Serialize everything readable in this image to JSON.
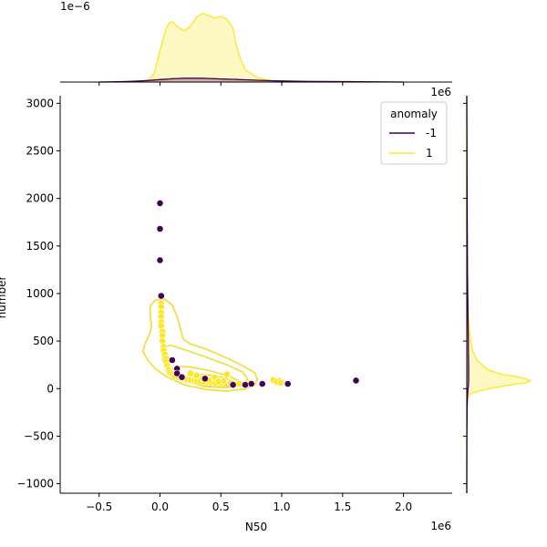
{
  "chart_data": {
    "type": "scatter",
    "title": "",
    "xlabel": "N50",
    "ylabel": "number",
    "x_offset_label": "1e6",
    "y_offset_label": "1e6",
    "top_marginal_offset_label": "1e−6",
    "xlim": [
      -0.82,
      2.4
    ],
    "ylim": [
      -1100,
      3080
    ],
    "xticks": [
      -0.5,
      0.0,
      0.5,
      1.0,
      1.5,
      2.0
    ],
    "xtick_labels": [
      "−0.5",
      "0.0",
      "0.5",
      "1.0",
      "1.5",
      "2.0"
    ],
    "yticks": [
      -1000,
      -500,
      0,
      500,
      1000,
      1500,
      2000,
      2500,
      3000
    ],
    "ytick_labels": [
      "−1000",
      "−500",
      "0",
      "500",
      "1000",
      "1500",
      "2000",
      "2500",
      "3000"
    ],
    "legend": {
      "title": "anomaly",
      "placement": "top-right",
      "entries": [
        {
          "label": "-1",
          "color": "#440154"
        },
        {
          "label": "1",
          "color": "#fde725"
        }
      ]
    },
    "colors": {
      "anomaly_neg": "#440154",
      "anomaly_pos": "#fde725",
      "kde_line": "#f2dc33"
    },
    "series": [
      {
        "name": "1",
        "color": "#fde725",
        "points": [
          [
            0.01,
            900
          ],
          [
            0.01,
            860
          ],
          [
            0.01,
            800
          ],
          [
            0.01,
            760
          ],
          [
            0.01,
            700
          ],
          [
            0.01,
            660
          ],
          [
            0.02,
            600
          ],
          [
            0.02,
            560
          ],
          [
            0.02,
            500
          ],
          [
            0.03,
            440
          ],
          [
            0.03,
            400
          ],
          [
            0.04,
            360
          ],
          [
            0.05,
            320
          ],
          [
            0.05,
            280
          ],
          [
            0.06,
            240
          ],
          [
            0.07,
            200
          ],
          [
            0.08,
            170
          ],
          [
            0.1,
            150
          ],
          [
            0.12,
            130
          ],
          [
            0.15,
            120
          ],
          [
            0.18,
            110
          ],
          [
            0.2,
            100
          ],
          [
            0.22,
            95
          ],
          [
            0.25,
            90
          ],
          [
            0.28,
            85
          ],
          [
            0.3,
            80
          ],
          [
            0.33,
            75
          ],
          [
            0.36,
            70
          ],
          [
            0.4,
            68
          ],
          [
            0.43,
            65
          ],
          [
            0.46,
            60
          ],
          [
            0.5,
            58
          ],
          [
            0.55,
            150
          ],
          [
            0.52,
            80
          ],
          [
            0.6,
            55
          ],
          [
            0.65,
            50
          ],
          [
            0.7,
            45
          ],
          [
            0.74,
            60
          ],
          [
            0.93,
            90
          ],
          [
            0.96,
            70
          ],
          [
            0.99,
            60
          ],
          [
            0.45,
            120
          ],
          [
            0.35,
            110
          ],
          [
            0.3,
            140
          ],
          [
            0.25,
            160
          ],
          [
            0.4,
            90
          ],
          [
            0.48,
            75
          ],
          [
            0.58,
            65
          ]
        ]
      },
      {
        "name": "-1",
        "color": "#440154",
        "points": [
          [
            0.0,
            1950
          ],
          [
            0.0,
            1680
          ],
          [
            0.0,
            1350
          ],
          [
            0.01,
            975
          ],
          [
            0.1,
            300
          ],
          [
            0.14,
            210
          ],
          [
            0.14,
            160
          ],
          [
            0.18,
            120
          ],
          [
            0.37,
            105
          ],
          [
            0.6,
            40
          ],
          [
            0.7,
            40
          ],
          [
            0.75,
            50
          ],
          [
            0.84,
            50
          ],
          [
            1.05,
            50
          ],
          [
            1.61,
            85
          ]
        ]
      }
    ],
    "kde_contours_1": [
      [
        [
          -0.1,
          300
        ],
        [
          -0.14,
          390
        ],
        [
          -0.12,
          480
        ],
        [
          -0.09,
          560
        ],
        [
          -0.07,
          650
        ],
        [
          -0.08,
          760
        ],
        [
          -0.08,
          870
        ],
        [
          -0.04,
          930
        ],
        [
          0.04,
          940
        ],
        [
          0.1,
          880
        ],
        [
          0.14,
          760
        ],
        [
          0.17,
          620
        ],
        [
          0.19,
          520
        ],
        [
          0.25,
          470
        ],
        [
          0.39,
          410
        ],
        [
          0.55,
          320
        ],
        [
          0.68,
          240
        ],
        [
          0.78,
          165
        ],
        [
          0.8,
          100
        ],
        [
          0.78,
          40
        ],
        [
          0.7,
          -5
        ],
        [
          0.55,
          -25
        ],
        [
          0.38,
          -10
        ],
        [
          0.2,
          40
        ],
        [
          0.06,
          120
        ],
        [
          -0.04,
          210
        ],
        [
          -0.1,
          300
        ]
      ],
      [
        [
          0.02,
          310
        ],
        [
          0.03,
          400
        ],
        [
          0.04,
          440
        ],
        [
          0.09,
          455
        ],
        [
          0.2,
          410
        ],
        [
          0.38,
          330
        ],
        [
          0.55,
          250
        ],
        [
          0.68,
          175
        ],
        [
          0.72,
          100
        ],
        [
          0.68,
          40
        ],
        [
          0.55,
          10
        ],
        [
          0.38,
          20
        ],
        [
          0.22,
          70
        ],
        [
          0.1,
          160
        ],
        [
          0.04,
          240
        ],
        [
          0.02,
          310
        ]
      ],
      [
        [
          0.08,
          180
        ],
        [
          0.12,
          230
        ],
        [
          0.24,
          230
        ],
        [
          0.4,
          190
        ],
        [
          0.57,
          130
        ],
        [
          0.66,
          75
        ],
        [
          0.6,
          30
        ],
        [
          0.44,
          25
        ],
        [
          0.28,
          55
        ],
        [
          0.14,
          110
        ],
        [
          0.08,
          180
        ]
      ],
      [
        [
          0.22,
          110
        ],
        [
          0.3,
          150
        ],
        [
          0.44,
          140
        ],
        [
          0.55,
          105
        ],
        [
          0.6,
          70
        ],
        [
          0.52,
          40
        ],
        [
          0.38,
          45
        ],
        [
          0.26,
          75
        ],
        [
          0.22,
          110
        ]
      ],
      [
        [
          0.3,
          95
        ],
        [
          0.4,
          105
        ],
        [
          0.5,
          85
        ],
        [
          0.52,
          60
        ],
        [
          0.42,
          55
        ],
        [
          0.32,
          70
        ],
        [
          0.3,
          95
        ]
      ],
      [
        [
          0.92,
          95
        ],
        [
          0.98,
          105
        ],
        [
          1.02,
          80
        ],
        [
          0.98,
          55
        ],
        [
          0.93,
          65
        ],
        [
          0.92,
          95
        ]
      ]
    ],
    "top_marginal": {
      "x": [
        -0.5,
        -0.4,
        -0.3,
        -0.2,
        -0.1,
        -0.05,
        0.0,
        0.05,
        0.08,
        0.1,
        0.15,
        0.2,
        0.25,
        0.3,
        0.35,
        0.4,
        0.45,
        0.5,
        0.55,
        0.6,
        0.62,
        0.65,
        0.7,
        0.8,
        0.9,
        1.0,
        1.2,
        1.5,
        2.0
      ],
      "density_1": [
        0.0,
        0.0,
        0.01,
        0.02,
        0.07,
        0.35,
        1.4,
        2.4,
        2.65,
        2.7,
        2.45,
        2.28,
        2.5,
        2.9,
        3.05,
        2.97,
        2.85,
        2.92,
        2.8,
        2.4,
        1.8,
        1.2,
        0.55,
        0.2,
        0.08,
        0.03,
        0.01,
        0.0,
        0.0
      ],
      "density_neg1": [
        0.0,
        0.01,
        0.02,
        0.04,
        0.07,
        0.09,
        0.11,
        0.13,
        0.14,
        0.15,
        0.16,
        0.17,
        0.17,
        0.17,
        0.17,
        0.16,
        0.15,
        0.14,
        0.13,
        0.12,
        0.12,
        0.11,
        0.1,
        0.08,
        0.06,
        0.05,
        0.03,
        0.02,
        0.0
      ]
    },
    "right_marginal": {
      "y": [
        -1100,
        -500,
        -200,
        -100,
        -50,
        0,
        30,
        60,
        80,
        100,
        120,
        150,
        200,
        300,
        400,
        500,
        700,
        900,
        1200,
        1600,
        2000,
        2500,
        3080
      ],
      "density_1": [
        0.0,
        0.0,
        0.002,
        0.01,
        0.06,
        0.35,
        0.6,
        0.92,
        1.0,
        0.95,
        0.82,
        0.55,
        0.32,
        0.16,
        0.09,
        0.06,
        0.03,
        0.015,
        0.005,
        0.0,
        0.0,
        0.0,
        0.0
      ],
      "density_neg1": [
        0.0,
        0.002,
        0.006,
        0.01,
        0.015,
        0.02,
        0.025,
        0.028,
        0.03,
        0.03,
        0.03,
        0.03,
        0.03,
        0.028,
        0.026,
        0.024,
        0.02,
        0.017,
        0.012,
        0.008,
        0.005,
        0.003,
        0.0
      ]
    }
  }
}
